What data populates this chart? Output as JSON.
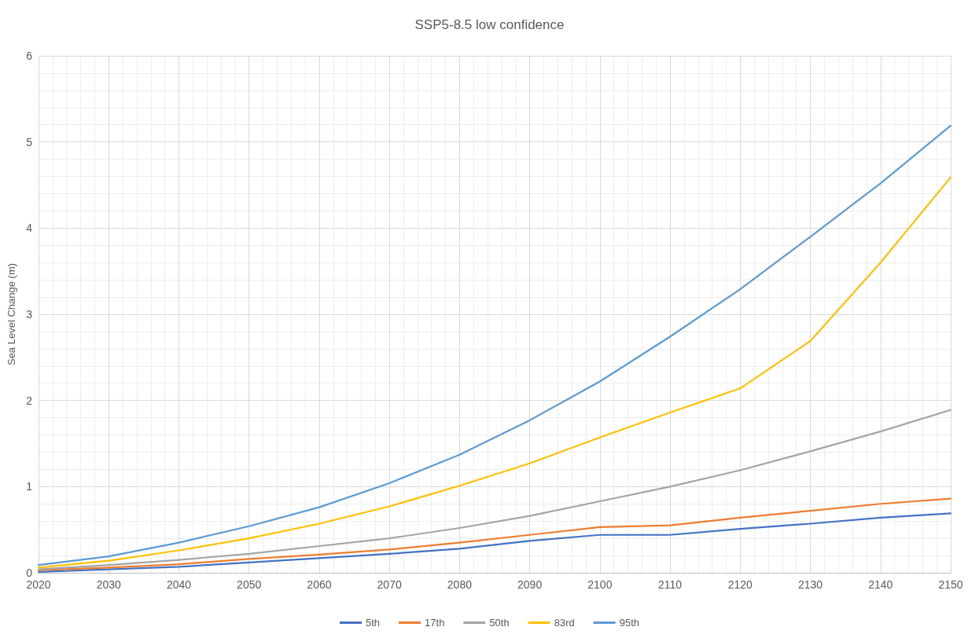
{
  "chart_data": {
    "type": "line",
    "title": "SSP5-8.5 low confidence",
    "ylabel": "Sea Level Change (m)",
    "x": [
      2020,
      2030,
      2040,
      2050,
      2060,
      2070,
      2080,
      2090,
      2100,
      2110,
      2120,
      2130,
      2140,
      2150
    ],
    "series": [
      {
        "name": "5th",
        "color": "#4472c4",
        "values": [
          0.01,
          0.04,
          0.07,
          0.12,
          0.17,
          0.22,
          0.28,
          0.37,
          0.44,
          0.44,
          0.51,
          0.57,
          0.64,
          0.69
        ]
      },
      {
        "name": "17th",
        "color": "#ed7d31",
        "values": [
          0.03,
          0.06,
          0.1,
          0.16,
          0.21,
          0.27,
          0.35,
          0.44,
          0.53,
          0.55,
          0.64,
          0.72,
          0.8,
          0.86
        ]
      },
      {
        "name": "50th",
        "color": "#a5a5a5",
        "values": [
          0.04,
          0.09,
          0.15,
          0.22,
          0.31,
          0.4,
          0.52,
          0.66,
          0.83,
          1.0,
          1.19,
          1.41,
          1.64,
          1.89
        ]
      },
      {
        "name": "83rd",
        "color": "#ffc000",
        "values": [
          0.06,
          0.14,
          0.26,
          0.4,
          0.57,
          0.77,
          1.01,
          1.27,
          1.57,
          1.86,
          2.14,
          2.69,
          3.6,
          4.59
        ]
      },
      {
        "name": "95th",
        "color": "#5b9bd5",
        "values": [
          0.09,
          0.19,
          0.35,
          0.54,
          0.76,
          1.04,
          1.37,
          1.77,
          2.22,
          2.74,
          3.29,
          3.9,
          4.52,
          5.19
        ]
      }
    ],
    "xlim": [
      2020,
      2150
    ],
    "xticks": [
      2020,
      2030,
      2040,
      2050,
      2060,
      2070,
      2080,
      2090,
      2100,
      2110,
      2120,
      2130,
      2140,
      2150
    ],
    "ylim": [
      0,
      6
    ],
    "yticks": [
      0,
      1,
      2,
      3,
      4,
      5,
      6
    ],
    "grid": true,
    "legend": "bottom",
    "marker": "none",
    "line_style": "solid"
  }
}
